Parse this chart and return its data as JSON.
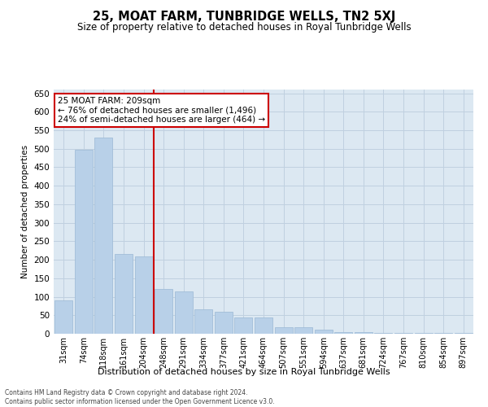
{
  "title": "25, MOAT FARM, TUNBRIDGE WELLS, TN2 5XJ",
  "subtitle": "Size of property relative to detached houses in Royal Tunbridge Wells",
  "xlabel": "Distribution of detached houses by size in Royal Tunbridge Wells",
  "ylabel": "Number of detached properties",
  "footnote1": "Contains HM Land Registry data © Crown copyright and database right 2024.",
  "footnote2": "Contains public sector information licensed under the Open Government Licence v3.0.",
  "annotation_line1": "25 MOAT FARM: 209sqm",
  "annotation_line2": "← 76% of detached houses are smaller (1,496)",
  "annotation_line3": "24% of semi-detached houses are larger (464) →",
  "categories": [
    "31sqm",
    "74sqm",
    "118sqm",
    "161sqm",
    "204sqm",
    "248sqm",
    "291sqm",
    "334sqm",
    "377sqm",
    "421sqm",
    "464sqm",
    "507sqm",
    "551sqm",
    "594sqm",
    "637sqm",
    "681sqm",
    "724sqm",
    "767sqm",
    "810sqm",
    "854sqm",
    "897sqm"
  ],
  "values": [
    90,
    497,
    530,
    215,
    210,
    120,
    115,
    65,
    60,
    45,
    45,
    18,
    18,
    10,
    5,
    5,
    2,
    2,
    2,
    2,
    2
  ],
  "bar_color": "#b8d0e8",
  "bar_edgecolor": "#9ab8d4",
  "vline_color": "#cc0000",
  "vline_x": 4.5,
  "annotation_box_color": "#cc0000",
  "grid_color": "#c0d0e0",
  "background_color": "#dce8f2",
  "ylim": [
    0,
    660
  ],
  "yticks": [
    0,
    50,
    100,
    150,
    200,
    250,
    300,
    350,
    400,
    450,
    500,
    550,
    600,
    650
  ]
}
